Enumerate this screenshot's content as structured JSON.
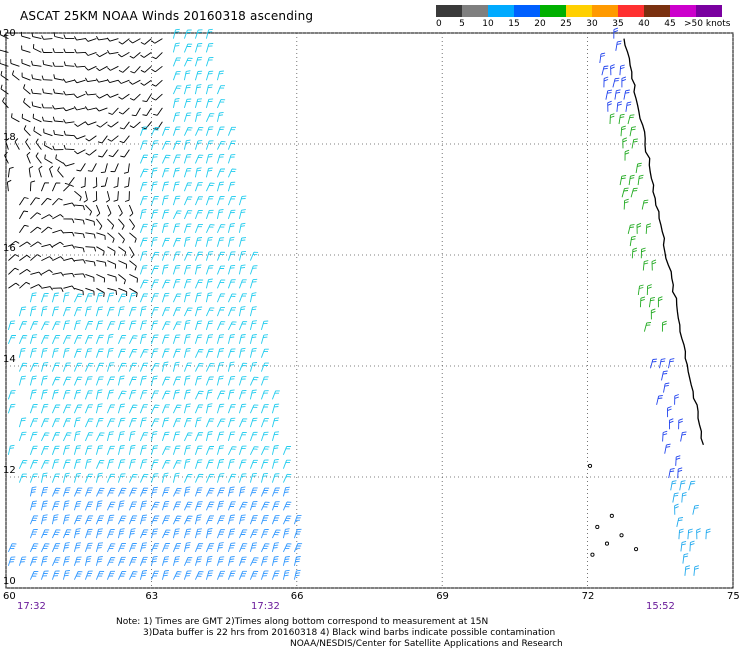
{
  "title": "ASCAT 25KM NOAA Winds 20160318 ascending",
  "legend": {
    "colors": [
      "#3a3a3a",
      "#7f7f7f",
      "#00aaff",
      "#0060ff",
      "#00b000",
      "#ffd000",
      "#ff9a00",
      "#ff3030",
      "#7a3010",
      "#cc00cc",
      "#7a00a0"
    ],
    "labels": [
      "0",
      "5",
      "10",
      "15",
      "20",
      "25",
      "30",
      "35",
      "40",
      "45",
      ">50 knots"
    ],
    "units": "knots"
  },
  "map": {
    "lon_range": [
      60,
      75
    ],
    "lat_range": [
      10,
      20
    ],
    "lon_ticks": [
      "60",
      "63",
      "66",
      "69",
      "72",
      "75"
    ],
    "lat_ticks": [
      "20",
      "18",
      "16",
      "14",
      "12",
      "10"
    ],
    "grid": "dotted",
    "times": [
      "17:32",
      "17:32",
      "15:52"
    ],
    "swaths": [
      {
        "pass": "17:32",
        "lon_range": [
          60,
          66.2
        ],
        "colors": [
          "black",
          "cyan",
          "light blue"
        ]
      },
      {
        "pass": "15:52",
        "lon_range": [
          72,
          75
        ],
        "colors": [
          "blue",
          "green",
          "cyan"
        ]
      }
    ],
    "coastline": "west coast of India"
  },
  "notes": [
    "Note: 1) Times are GMT 2)Times along bottom correspond to measurement at 15N",
    "3)Data buffer is 22 hrs from 20160318 4) Black wind barbs indicate possible contamination",
    "NOAA/NESDIS/Center for Satellite Applications and Research"
  ]
}
